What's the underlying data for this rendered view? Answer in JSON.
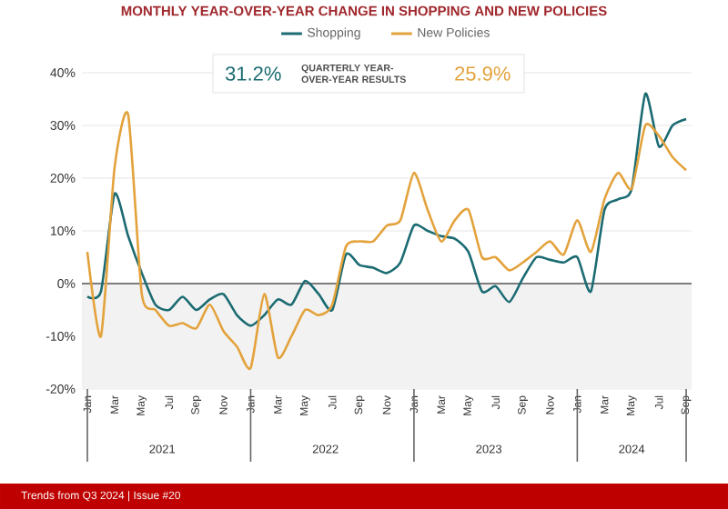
{
  "chart_data": {
    "type": "line",
    "title": "MONTHLY YEAR-OVER-YEAR CHANGE IN SHOPPING AND NEW POLICIES",
    "categories": [
      "Jan",
      null,
      "Mar",
      null,
      "May",
      null,
      "Jul",
      null,
      "Sep",
      null,
      "Nov",
      null,
      "Jan",
      null,
      "Mar",
      null,
      "May",
      null,
      "Jul",
      null,
      "Sep",
      null,
      "Nov",
      null,
      "Jan",
      null,
      "Mar",
      null,
      "May",
      null,
      "Jul",
      null,
      "Sep",
      null,
      "Nov",
      null,
      "Jan",
      null,
      "Mar",
      null,
      "May",
      null,
      "Jul",
      null,
      "Sep"
    ],
    "series": [
      {
        "name": "Shopping",
        "color": "#1b6b72",
        "values": [
          -2.5,
          -1.5,
          17,
          9,
          2,
          -4,
          -5,
          -2.5,
          -5,
          -3,
          -2,
          -6,
          -8,
          -6,
          -3,
          -4,
          0.5,
          -2,
          -5,
          5.5,
          3.5,
          3,
          2,
          4,
          11,
          10,
          9,
          8.5,
          6,
          -1.5,
          -0.5,
          -3.5,
          1,
          5,
          4.5,
          4,
          5,
          -1.5,
          14,
          16,
          18,
          36,
          26,
          30,
          31.2
        ]
      },
      {
        "name": "New Policies",
        "color": "#e3a23b",
        "values": [
          6,
          -10,
          22,
          32,
          -2,
          -5,
          -8,
          -7.5,
          -8.5,
          -4,
          -9,
          -12,
          -16,
          -2,
          -14,
          -10,
          -5,
          -6,
          -4,
          7,
          8,
          8,
          11,
          12,
          21,
          14,
          8,
          12,
          14,
          5,
          5,
          2.5,
          4,
          6,
          8,
          5.5,
          12,
          6,
          16,
          21,
          18,
          30,
          28,
          24,
          21.5
        ]
      }
    ],
    "ylim": [
      -20,
      40
    ],
    "yticks": [
      {
        "value": -20,
        "label": "-20%"
      },
      {
        "value": -10,
        "label": "-10%"
      },
      {
        "value": 0,
        "label": "0%"
      },
      {
        "value": 10,
        "label": "10%"
      },
      {
        "value": 20,
        "label": "20%"
      },
      {
        "value": 30,
        "label": "30%"
      },
      {
        "value": 40,
        "label": "40%"
      }
    ],
    "grid": "y",
    "legend": "top",
    "line_style": "solid",
    "ref_lines": [
      {
        "axis": "y",
        "value": 0,
        "color": "#555555"
      }
    ],
    "bands": [
      {
        "axis": "y",
        "from": -20,
        "to": 0,
        "color": "#f2f2f2"
      }
    ],
    "annotations": [
      "2021",
      "2022",
      "2023",
      "2024",
      "31.2%",
      "QUARTERLY YEAR-OVER-YEAR RESULTS",
      "25.9%",
      "Trends from Q3 2024 | Issue #20"
    ]
  }
}
